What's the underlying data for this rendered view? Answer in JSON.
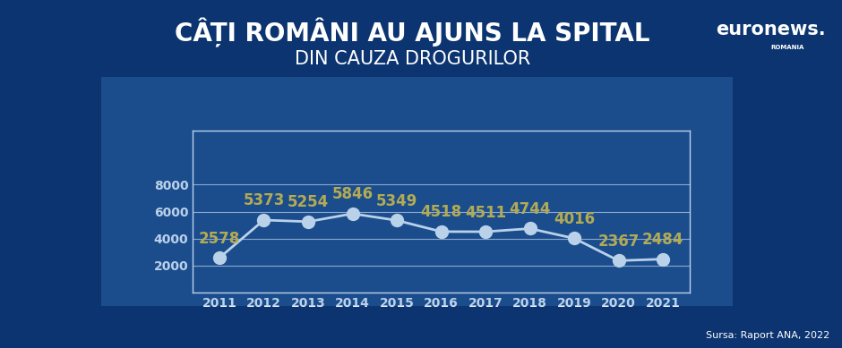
{
  "chart_data": {
    "type": "line",
    "title": "CÂȚI ROMÂNI AU AJUNS LA SPITAL",
    "subtitle": "DIN CAUZA DROGURILOR",
    "categories": [
      "2011",
      "2012",
      "2013",
      "2014",
      "2015",
      "2016",
      "2017",
      "2018",
      "2019",
      "2020",
      "2021"
    ],
    "values": [
      2578,
      5373,
      5254,
      5846,
      5349,
      4518,
      4511,
      4744,
      4016,
      2367,
      2484
    ],
    "color": "#ffffff",
    "marker": "o",
    "ylim": [
      0,
      12000
    ],
    "yticks": [
      2000,
      4000,
      6000,
      8000
    ],
    "grid": true,
    "data_labels": true,
    "annotations": [
      "euronews.",
      "ROMANIA"
    ],
    "source": "Sursa: Raport ANA, 2022"
  }
}
